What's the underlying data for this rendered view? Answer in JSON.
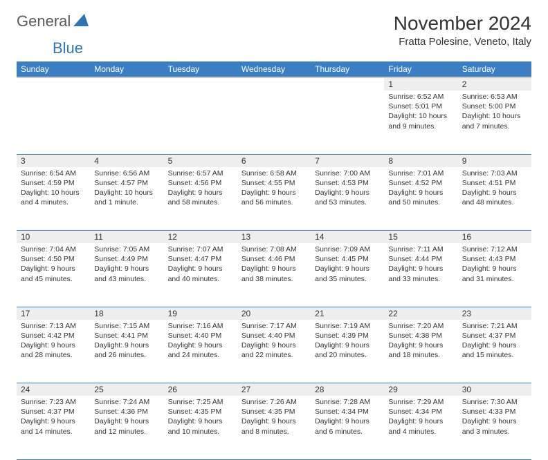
{
  "logo": {
    "text1": "General",
    "text2": "Blue"
  },
  "title": "November 2024",
  "location": "Fratta Polesine, Veneto, Italy",
  "header_color": "#3a7fc4",
  "daynum_bg": "#eeeeee",
  "border_color": "#3a7fc4",
  "day_headers": [
    "Sunday",
    "Monday",
    "Tuesday",
    "Wednesday",
    "Thursday",
    "Friday",
    "Saturday"
  ],
  "weeks": [
    [
      {
        "n": "",
        "sunrise": "",
        "sunset": "",
        "daylight": ""
      },
      {
        "n": "",
        "sunrise": "",
        "sunset": "",
        "daylight": ""
      },
      {
        "n": "",
        "sunrise": "",
        "sunset": "",
        "daylight": ""
      },
      {
        "n": "",
        "sunrise": "",
        "sunset": "",
        "daylight": ""
      },
      {
        "n": "",
        "sunrise": "",
        "sunset": "",
        "daylight": ""
      },
      {
        "n": "1",
        "sunrise": "Sunrise: 6:52 AM",
        "sunset": "Sunset: 5:01 PM",
        "daylight": "Daylight: 10 hours and 9 minutes."
      },
      {
        "n": "2",
        "sunrise": "Sunrise: 6:53 AM",
        "sunset": "Sunset: 5:00 PM",
        "daylight": "Daylight: 10 hours and 7 minutes."
      }
    ],
    [
      {
        "n": "3",
        "sunrise": "Sunrise: 6:54 AM",
        "sunset": "Sunset: 4:59 PM",
        "daylight": "Daylight: 10 hours and 4 minutes."
      },
      {
        "n": "4",
        "sunrise": "Sunrise: 6:56 AM",
        "sunset": "Sunset: 4:57 PM",
        "daylight": "Daylight: 10 hours and 1 minute."
      },
      {
        "n": "5",
        "sunrise": "Sunrise: 6:57 AM",
        "sunset": "Sunset: 4:56 PM",
        "daylight": "Daylight: 9 hours and 58 minutes."
      },
      {
        "n": "6",
        "sunrise": "Sunrise: 6:58 AM",
        "sunset": "Sunset: 4:55 PM",
        "daylight": "Daylight: 9 hours and 56 minutes."
      },
      {
        "n": "7",
        "sunrise": "Sunrise: 7:00 AM",
        "sunset": "Sunset: 4:53 PM",
        "daylight": "Daylight: 9 hours and 53 minutes."
      },
      {
        "n": "8",
        "sunrise": "Sunrise: 7:01 AM",
        "sunset": "Sunset: 4:52 PM",
        "daylight": "Daylight: 9 hours and 50 minutes."
      },
      {
        "n": "9",
        "sunrise": "Sunrise: 7:03 AM",
        "sunset": "Sunset: 4:51 PM",
        "daylight": "Daylight: 9 hours and 48 minutes."
      }
    ],
    [
      {
        "n": "10",
        "sunrise": "Sunrise: 7:04 AM",
        "sunset": "Sunset: 4:50 PM",
        "daylight": "Daylight: 9 hours and 45 minutes."
      },
      {
        "n": "11",
        "sunrise": "Sunrise: 7:05 AM",
        "sunset": "Sunset: 4:49 PM",
        "daylight": "Daylight: 9 hours and 43 minutes."
      },
      {
        "n": "12",
        "sunrise": "Sunrise: 7:07 AM",
        "sunset": "Sunset: 4:47 PM",
        "daylight": "Daylight: 9 hours and 40 minutes."
      },
      {
        "n": "13",
        "sunrise": "Sunrise: 7:08 AM",
        "sunset": "Sunset: 4:46 PM",
        "daylight": "Daylight: 9 hours and 38 minutes."
      },
      {
        "n": "14",
        "sunrise": "Sunrise: 7:09 AM",
        "sunset": "Sunset: 4:45 PM",
        "daylight": "Daylight: 9 hours and 35 minutes."
      },
      {
        "n": "15",
        "sunrise": "Sunrise: 7:11 AM",
        "sunset": "Sunset: 4:44 PM",
        "daylight": "Daylight: 9 hours and 33 minutes."
      },
      {
        "n": "16",
        "sunrise": "Sunrise: 7:12 AM",
        "sunset": "Sunset: 4:43 PM",
        "daylight": "Daylight: 9 hours and 31 minutes."
      }
    ],
    [
      {
        "n": "17",
        "sunrise": "Sunrise: 7:13 AM",
        "sunset": "Sunset: 4:42 PM",
        "daylight": "Daylight: 9 hours and 28 minutes."
      },
      {
        "n": "18",
        "sunrise": "Sunrise: 7:15 AM",
        "sunset": "Sunset: 4:41 PM",
        "daylight": "Daylight: 9 hours and 26 minutes."
      },
      {
        "n": "19",
        "sunrise": "Sunrise: 7:16 AM",
        "sunset": "Sunset: 4:40 PM",
        "daylight": "Daylight: 9 hours and 24 minutes."
      },
      {
        "n": "20",
        "sunrise": "Sunrise: 7:17 AM",
        "sunset": "Sunset: 4:40 PM",
        "daylight": "Daylight: 9 hours and 22 minutes."
      },
      {
        "n": "21",
        "sunrise": "Sunrise: 7:19 AM",
        "sunset": "Sunset: 4:39 PM",
        "daylight": "Daylight: 9 hours and 20 minutes."
      },
      {
        "n": "22",
        "sunrise": "Sunrise: 7:20 AM",
        "sunset": "Sunset: 4:38 PM",
        "daylight": "Daylight: 9 hours and 18 minutes."
      },
      {
        "n": "23",
        "sunrise": "Sunrise: 7:21 AM",
        "sunset": "Sunset: 4:37 PM",
        "daylight": "Daylight: 9 hours and 15 minutes."
      }
    ],
    [
      {
        "n": "24",
        "sunrise": "Sunrise: 7:23 AM",
        "sunset": "Sunset: 4:37 PM",
        "daylight": "Daylight: 9 hours and 14 minutes."
      },
      {
        "n": "25",
        "sunrise": "Sunrise: 7:24 AM",
        "sunset": "Sunset: 4:36 PM",
        "daylight": "Daylight: 9 hours and 12 minutes."
      },
      {
        "n": "26",
        "sunrise": "Sunrise: 7:25 AM",
        "sunset": "Sunset: 4:35 PM",
        "daylight": "Daylight: 9 hours and 10 minutes."
      },
      {
        "n": "27",
        "sunrise": "Sunrise: 7:26 AM",
        "sunset": "Sunset: 4:35 PM",
        "daylight": "Daylight: 9 hours and 8 minutes."
      },
      {
        "n": "28",
        "sunrise": "Sunrise: 7:28 AM",
        "sunset": "Sunset: 4:34 PM",
        "daylight": "Daylight: 9 hours and 6 minutes."
      },
      {
        "n": "29",
        "sunrise": "Sunrise: 7:29 AM",
        "sunset": "Sunset: 4:34 PM",
        "daylight": "Daylight: 9 hours and 4 minutes."
      },
      {
        "n": "30",
        "sunrise": "Sunrise: 7:30 AM",
        "sunset": "Sunset: 4:33 PM",
        "daylight": "Daylight: 9 hours and 3 minutes."
      }
    ]
  ]
}
